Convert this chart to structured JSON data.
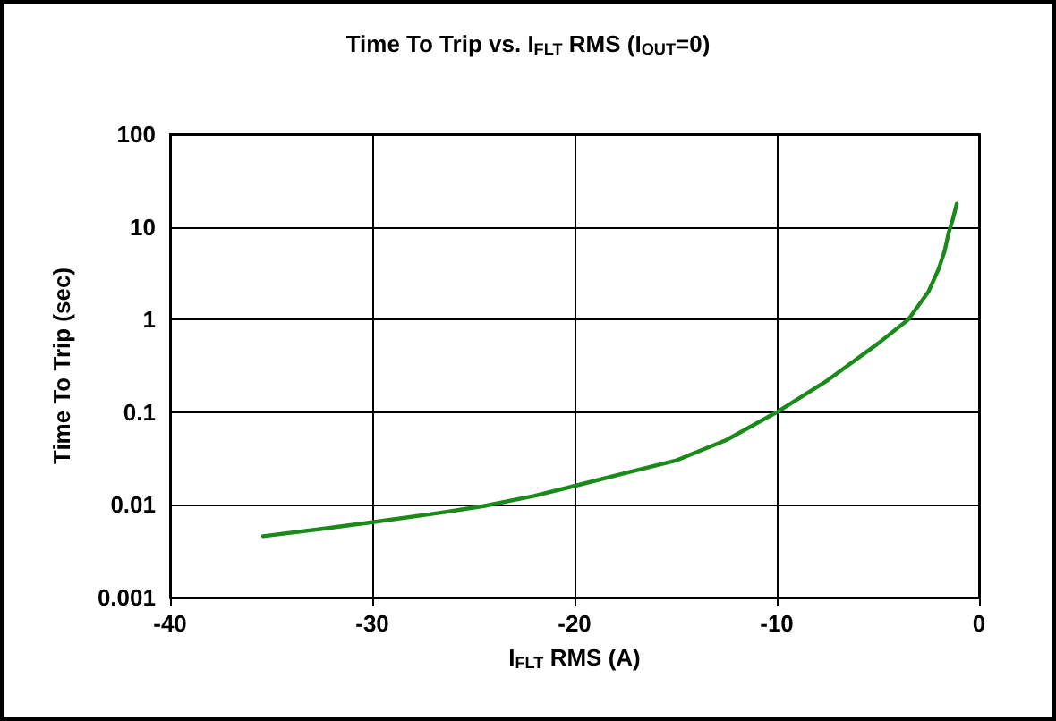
{
  "chart_data": {
    "type": "line",
    "title": "Time To Trip vs. I$_{FLT}$ RMS (I$_{OUT}$=0)",
    "xlabel": "I$_{FLT}$ RMS (A)",
    "ylabel": "Time To Trip (sec)",
    "series": [
      {
        "color": "#1a8a1a",
        "x": [
          -35.4,
          -32.5,
          -30,
          -27,
          -24.5,
          -22,
          -20,
          -17.5,
          -15,
          -12.5,
          -10,
          -7.5,
          -5,
          -3.5,
          -2.5,
          -2,
          -1.7,
          -1.5,
          -1.3,
          -1.1
        ],
        "values": [
          0.0046,
          0.0055,
          0.0065,
          0.008,
          0.0097,
          0.0125,
          0.016,
          0.022,
          0.03,
          0.05,
          0.1,
          0.22,
          0.55,
          1,
          2,
          3.5,
          5.5,
          8.7,
          12,
          17.8
        ]
      }
    ],
    "xlim": [
      -40,
      0
    ],
    "xticks": [
      -40,
      -30,
      -20,
      -10,
      0
    ],
    "ylim": [
      0.001,
      100
    ],
    "yticks": [
      0.001,
      0.01,
      0.1,
      1,
      10,
      100
    ],
    "log": "y",
    "grid": true,
    "legend": false,
    "marker": "none",
    "line_style": "solid"
  }
}
